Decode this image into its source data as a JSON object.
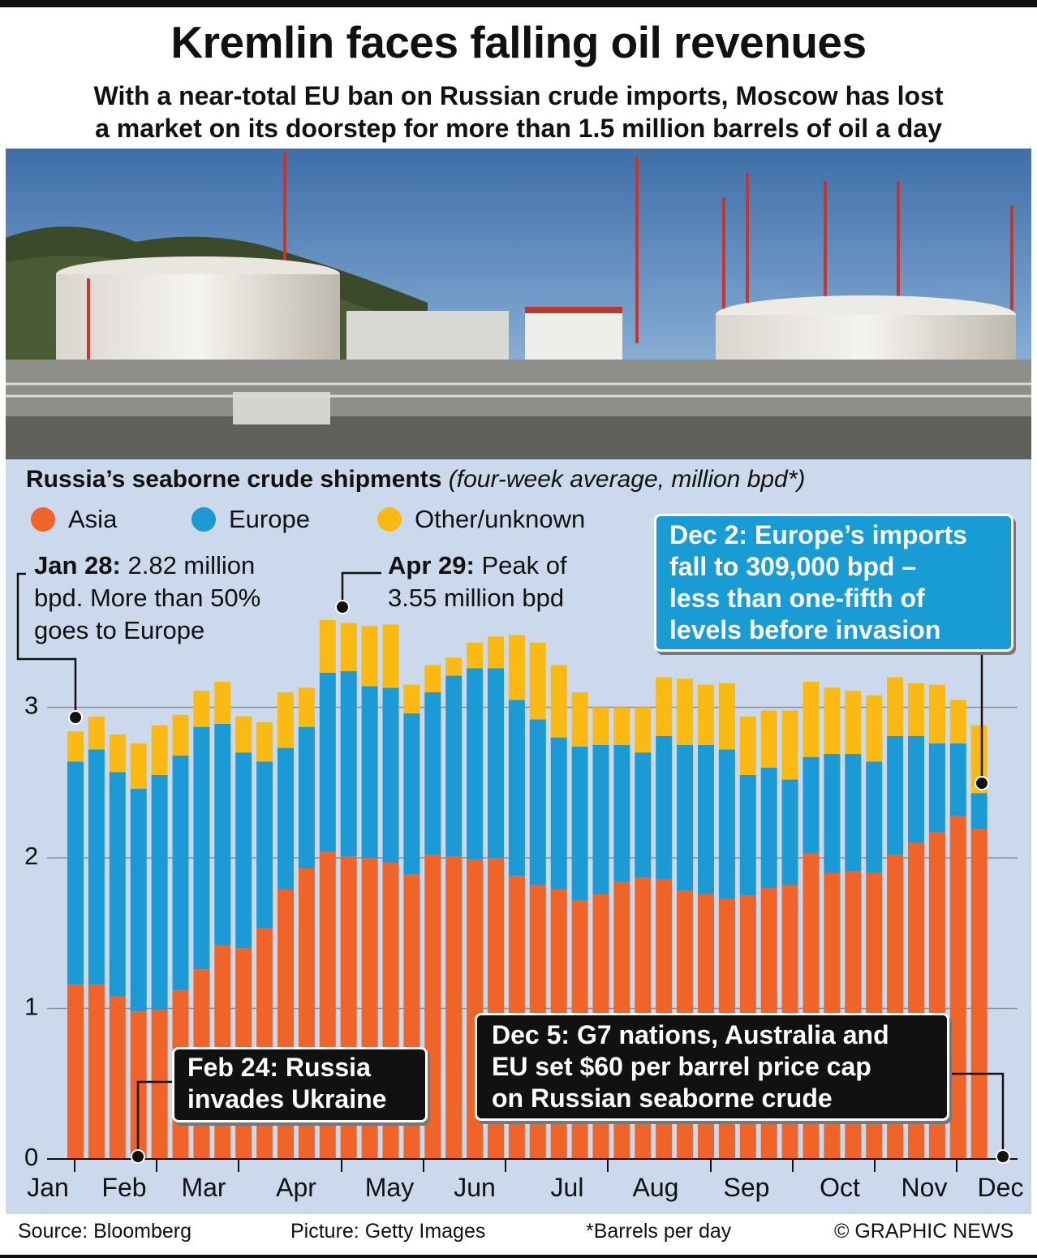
{
  "title": "Kremlin faces falling oil revenues",
  "subtitle_line1": "With a near-total EU ban on Russian crude imports, Moscow has lost",
  "subtitle_line2": "a market on its doorstep for more than 1.5 million barrels of oil a day",
  "chart_heading_bold": "Russia’s seaborne crude shipments",
  "chart_heading_italic": "(four-week average, million bpd*)",
  "legend": [
    {
      "label": "Asia",
      "color": "#f0642a"
    },
    {
      "label": "Europe",
      "color": "#1c9ad6"
    },
    {
      "label": "Other/unknown",
      "color": "#fbb913"
    }
  ],
  "annotations": {
    "jan28_bold": "Jan 28:",
    "jan28_line1": "2.82 million",
    "jan28_line2": "bpd. More than 50%",
    "jan28_line3": "goes to Europe",
    "apr29_bold": "Apr 29:",
    "apr29_line1": "Peak of",
    "apr29_line2": "3.55 million bpd",
    "dec2_line1": "Dec 2: Europe’s imports",
    "dec2_line2": "fall to 309,000 bpd –",
    "dec2_line3": "less than one-fifth of",
    "dec2_line4": "levels before invasion",
    "feb24_line1": "Feb 24: Russia",
    "feb24_line2": "invades Ukraine",
    "dec5_line1": "Dec 5: G7 nations, Australia and",
    "dec5_line2": "EU set $60 per barrel price cap",
    "dec5_line3": "on Russian seaborne crude"
  },
  "footer": {
    "source": "Source: Bloomberg",
    "picture": "Picture: Getty Images",
    "note": "*Barrels per day",
    "copyright": "© GRAPHIC NEWS"
  },
  "chart_data": {
    "type": "bar",
    "stacked": true,
    "ylim": [
      0,
      3.55
    ],
    "yticks": [
      0,
      1,
      2,
      3
    ],
    "grid": true,
    "month_labels": [
      "Jan",
      "Feb",
      "Mar",
      "Apr",
      "May",
      "Jun",
      "Jul",
      "Aug",
      "Sep",
      "Oct",
      "Nov",
      "Dec"
    ],
    "series": [
      {
        "name": "Asia",
        "color": "#f0642a",
        "values": [
          1.16,
          1.16,
          1.08,
          0.98,
          0.99,
          1.12,
          1.26,
          1.42,
          1.4,
          1.53,
          1.79,
          1.93,
          2.04,
          2.01,
          2.0,
          1.97,
          1.89,
          2.02,
          2.01,
          1.99,
          2.0,
          1.88,
          1.82,
          1.79,
          1.72,
          1.76,
          1.84,
          1.87,
          1.86,
          1.78,
          1.76,
          1.73,
          1.75,
          1.8,
          1.82,
          2.03,
          1.9,
          1.91,
          1.9,
          2.02,
          2.1,
          2.17,
          2.28,
          2.19
        ]
      },
      {
        "name": "Europe",
        "color": "#1c9ad6",
        "values": [
          1.48,
          1.56,
          1.49,
          1.48,
          1.56,
          1.56,
          1.61,
          1.47,
          1.3,
          1.11,
          0.94,
          0.94,
          1.19,
          1.23,
          1.14,
          1.16,
          1.07,
          1.08,
          1.2,
          1.27,
          1.26,
          1.17,
          1.1,
          1.01,
          1.02,
          0.99,
          0.91,
          0.83,
          0.95,
          0.97,
          0.99,
          0.99,
          0.8,
          0.8,
          0.7,
          0.64,
          0.79,
          0.78,
          0.74,
          0.79,
          0.71,
          0.59,
          0.48,
          0.24
        ]
      },
      {
        "name": "Other/unknown",
        "color": "#fbb913",
        "values": [
          0.2,
          0.22,
          0.25,
          0.3,
          0.33,
          0.27,
          0.24,
          0.28,
          0.24,
          0.26,
          0.37,
          0.26,
          0.35,
          0.32,
          0.4,
          0.42,
          0.19,
          0.18,
          0.12,
          0.17,
          0.21,
          0.43,
          0.51,
          0.48,
          0.36,
          0.25,
          0.25,
          0.3,
          0.39,
          0.44,
          0.4,
          0.44,
          0.39,
          0.38,
          0.46,
          0.5,
          0.44,
          0.42,
          0.44,
          0.39,
          0.35,
          0.39,
          0.29,
          0.45
        ]
      }
    ]
  }
}
